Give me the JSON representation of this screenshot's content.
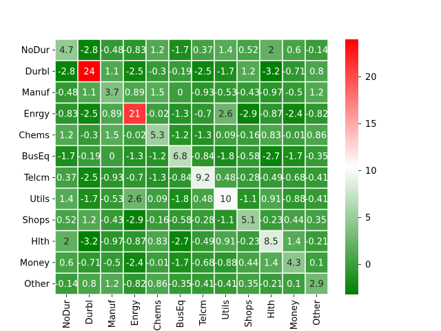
{
  "chart_data": {
    "type": "heatmap",
    "title": "",
    "xlabel": "",
    "ylabel": "",
    "rows": [
      "NoDur",
      "Durbl",
      "Manuf",
      "Enrgy",
      "Chems",
      "BusEq",
      "Telcm",
      "Utils",
      "Shops",
      "Hlth",
      "Money",
      "Other"
    ],
    "cols": [
      "NoDur",
      "Durbl",
      "Manuf",
      "Enrgy",
      "Chems",
      "BusEq",
      "Telcm",
      "Utils",
      "Shops",
      "Hlth",
      "Money",
      "Other"
    ],
    "values": [
      [
        4.7,
        -2.8,
        -0.48,
        -0.83,
        1.2,
        -1.7,
        0.37,
        1.4,
        0.52,
        2,
        0.6,
        -0.14
      ],
      [
        -2.8,
        24,
        1.1,
        -2.5,
        -0.3,
        -0.19,
        -2.5,
        -1.7,
        1.2,
        -3.2,
        -0.71,
        0.8
      ],
      [
        -0.48,
        1.1,
        3.7,
        0.89,
        1.5,
        0,
        -0.93,
        -0.53,
        -0.43,
        -0.97,
        -0.5,
        1.2
      ],
      [
        -0.83,
        -2.5,
        0.89,
        21,
        -0.02,
        -1.3,
        -0.7,
        2.6,
        -2.9,
        -0.87,
        -2.4,
        -0.82
      ],
      [
        1.2,
        -0.3,
        1.5,
        -0.02,
        5.3,
        -1.2,
        -1.3,
        0.09,
        -0.16,
        0.83,
        -0.01,
        0.86
      ],
      [
        -1.7,
        -0.19,
        0,
        -1.3,
        -1.2,
        6.8,
        -0.84,
        -1.8,
        -0.58,
        -2.7,
        -1.7,
        -0.35
      ],
      [
        0.37,
        -2.5,
        -0.93,
        -0.7,
        -1.3,
        -0.84,
        9.2,
        0.48,
        -0.28,
        -0.49,
        -0.68,
        -0.41
      ],
      [
        1.4,
        -1.7,
        -0.53,
        2.6,
        0.09,
        -1.8,
        0.48,
        10,
        -1.1,
        0.91,
        -0.88,
        -0.41
      ],
      [
        0.52,
        1.2,
        -0.43,
        -2.9,
        -0.16,
        -0.58,
        -0.28,
        -1.1,
        5.1,
        -0.23,
        0.44,
        0.35
      ],
      [
        2,
        -3.2,
        -0.97,
        -0.87,
        0.83,
        -2.7,
        -0.49,
        0.91,
        -0.23,
        8.5,
        1.4,
        -0.21
      ],
      [
        0.6,
        -0.71,
        -0.5,
        -2.4,
        -0.01,
        -1.7,
        -0.68,
        -0.88,
        0.44,
        1.4,
        4.3,
        0.1
      ],
      [
        -0.14,
        0.8,
        1.2,
        -0.82,
        0.86,
        -0.35,
        -0.41,
        -0.41,
        0.35,
        -0.21,
        0.1,
        2.9
      ]
    ],
    "vmin": -3.2,
    "vmax": 24,
    "vcenter": 10.4,
    "colormap": [
      "#008000",
      "#ffffff",
      "#ff0000"
    ],
    "cell_border_color": "#ffffff",
    "colorbar_ticks": [
      0,
      5,
      10,
      15,
      20
    ]
  }
}
